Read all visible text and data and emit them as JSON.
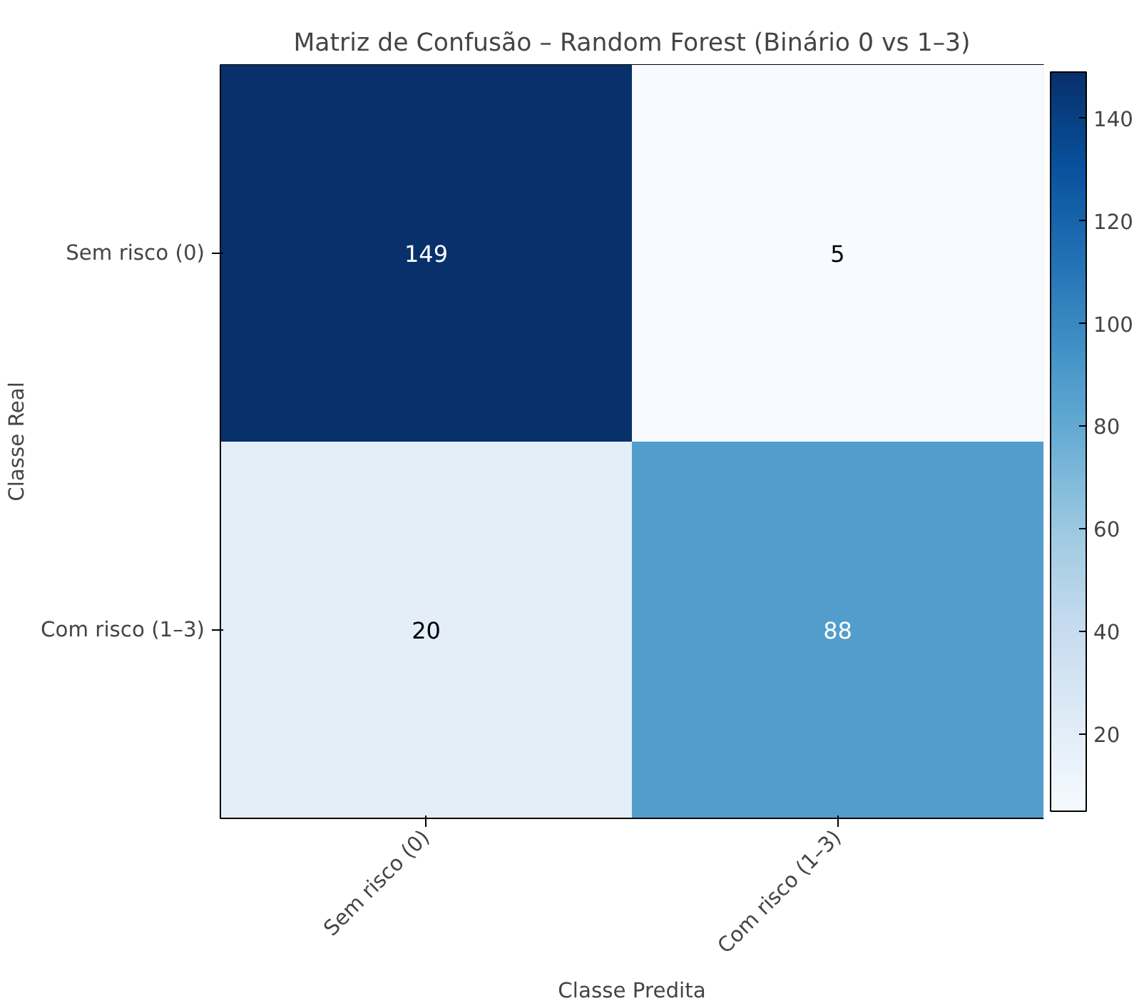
{
  "chart_data": {
    "type": "heatmap",
    "title": "Matriz de Confusão – Random Forest (Binário 0 vs 1–3)",
    "xlabel": "Classe Predita",
    "ylabel": "Classe Real",
    "categories": [
      "Sem risco (0)",
      "Com risco (1–3)"
    ],
    "y_categories": [
      "Sem risco (0)",
      "Com risco (1–3)"
    ],
    "cells": [
      [
        149,
        5
      ],
      [
        20,
        88
      ]
    ],
    "clim": [
      5,
      149
    ],
    "cticks": [
      20,
      40,
      60,
      80,
      100,
      120,
      140
    ],
    "data_labels": true
  }
}
